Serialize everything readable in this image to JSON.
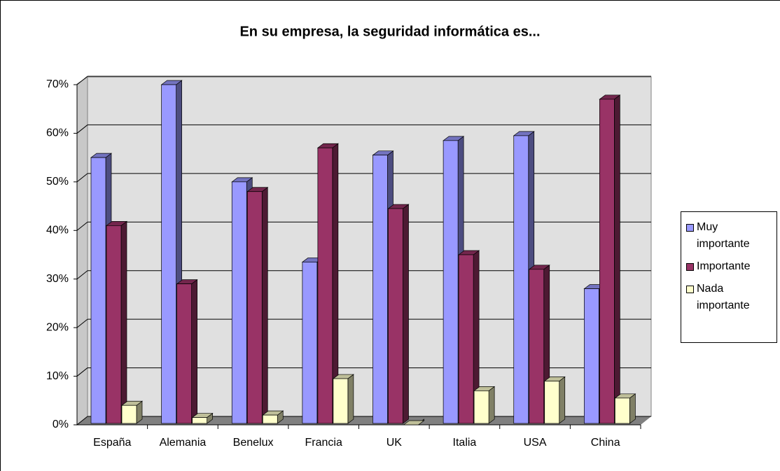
{
  "chart_data": {
    "type": "bar3d",
    "title": "En su empresa, la seguridad informática es...",
    "categories": [
      "España",
      "Alemania",
      "Benelux",
      "Francia",
      "UK",
      "Italia",
      "USA",
      "China"
    ],
    "series": [
      {
        "name": "Muy importante",
        "color": "#9999ff",
        "values": [
          55,
          70,
          50,
          33.5,
          55.5,
          58.5,
          59.5,
          28
        ]
      },
      {
        "name": "Importante",
        "color": "#993366",
        "values": [
          41,
          29,
          48,
          57,
          44.5,
          35,
          32,
          67
        ]
      },
      {
        "name": "Nada importante",
        "color": "#ffffcc",
        "values": [
          4,
          1.5,
          2,
          9.5,
          0,
          7,
          9,
          5.5
        ]
      }
    ],
    "ylim": [
      0,
      70
    ],
    "yticks": [
      {
        "value": 0,
        "label": "0%"
      },
      {
        "value": 10,
        "label": "10%"
      },
      {
        "value": 20,
        "label": "20%"
      },
      {
        "value": 30,
        "label": "30%"
      },
      {
        "value": 40,
        "label": "40%"
      },
      {
        "value": 50,
        "label": "50%"
      },
      {
        "value": 60,
        "label": "60%"
      },
      {
        "value": 70,
        "label": "70%"
      }
    ],
    "grid": true,
    "legend": "right"
  }
}
